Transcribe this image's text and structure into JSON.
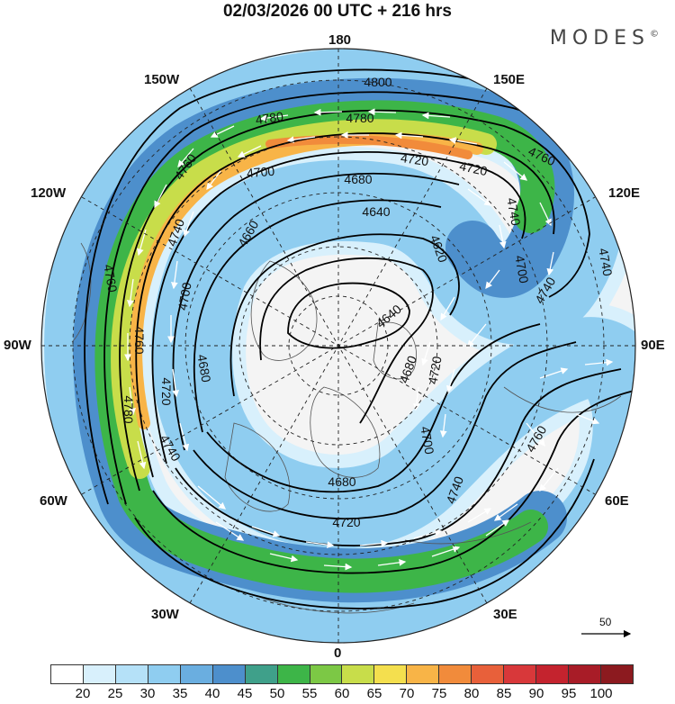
{
  "title": "02/03/2026  00 UTC  + 216 hrs",
  "brand": "MODES",
  "brand_mark": "©",
  "longitude_labels": {
    "top": "180",
    "bottom": "0",
    "left": "90W",
    "right": "90E",
    "upper_left": "150W",
    "upper_right": "150E",
    "mid_upper_left": "120W",
    "mid_upper_right": "120E",
    "mid_lower_left": "60W",
    "mid_lower_right": "60E",
    "lower_left": "30W",
    "lower_right": "30E"
  },
  "contour_labels": [
    "4800",
    "4780",
    "4780",
    "4760",
    "4720",
    "4720",
    "4700",
    "4680",
    "4640",
    "4660",
    "4620",
    "4740",
    "4740",
    "4700",
    "4760",
    "4680",
    "4700",
    "4640",
    "4680",
    "4720",
    "4700",
    "4740",
    "4760",
    "4740",
    "4680",
    "4720",
    "4760",
    "4740",
    "4780",
    "4760",
    "4720",
    "4740"
  ],
  "reference_vector": "50",
  "colorbar": {
    "colors": [
      "#ffffff",
      "#d8f0fc",
      "#b5e1f8",
      "#8fcdf0",
      "#6aaee0",
      "#4d8fcc",
      "#3fa08a",
      "#3db548",
      "#7cc845",
      "#c8dd4a",
      "#f4df4e",
      "#f8b447",
      "#f18b3b",
      "#e8603a",
      "#d8383a",
      "#c4232e",
      "#a81c27",
      "#8c1a1f"
    ],
    "ticks": [
      "20",
      "25",
      "30",
      "35",
      "40",
      "45",
      "50",
      "55",
      "60",
      "65",
      "70",
      "75",
      "80",
      "85",
      "90",
      "95",
      "100"
    ]
  },
  "colors": {
    "contour": "#000000",
    "wind_arrows": "#ffffff",
    "land_outline": "#555555"
  }
}
